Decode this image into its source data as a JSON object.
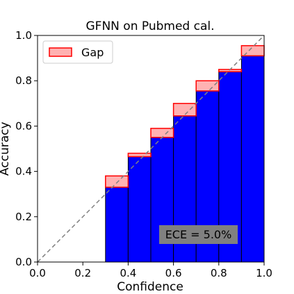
{
  "chart_data": {
    "type": "bar",
    "title": "GFNN on Pubmed cal.",
    "xlabel": "Confidence",
    "ylabel": "Accuracy",
    "xlim": [
      0,
      1
    ],
    "ylim": [
      0,
      1
    ],
    "x_ticks": [
      "0.0",
      "0.2",
      "0.4",
      "0.6",
      "0.8",
      "1.0"
    ],
    "y_ticks": [
      "0.0",
      "0.2",
      "0.4",
      "0.6",
      "0.8",
      "1.0"
    ],
    "bin_edges": [
      0.0,
      0.1,
      0.2,
      0.3,
      0.4,
      0.5,
      0.6,
      0.7,
      0.8,
      0.9,
      1.0
    ],
    "series": [
      {
        "name": "",
        "values": [
          0,
          0,
          0,
          0.33,
          0.465,
          0.55,
          0.645,
          0.755,
          0.84,
          0.91
        ]
      },
      {
        "name": "Gap",
        "values": [
          0,
          0,
          0,
          0.38,
          0.48,
          0.59,
          0.7,
          0.8,
          0.85,
          0.955
        ]
      }
    ],
    "legend": {
      "position": "top-left",
      "entries": [
        "Gap"
      ]
    },
    "annotation": "ECE = 5.0%",
    "diagonal": true,
    "grid": false,
    "colors": {
      "outputs": "#0000ff",
      "gap": "#ff0000",
      "gap_alpha": 0.3,
      "diagonal": "#808080",
      "annotation_bg": "#808080"
    }
  }
}
